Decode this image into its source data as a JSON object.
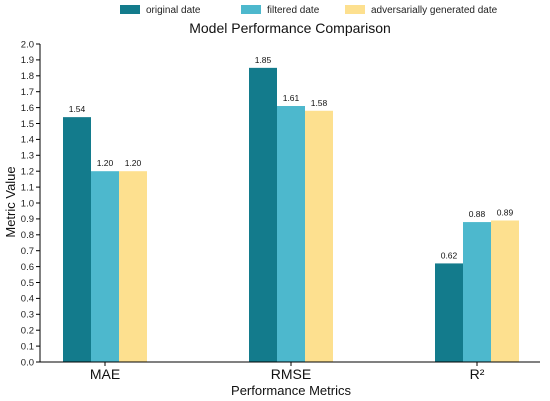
{
  "chart_data": {
    "type": "bar",
    "title": "Model Performance Comparison",
    "xlabel": "Performance Metrics",
    "ylabel": "Metric Value",
    "categories": [
      "MAE",
      "RMSE",
      "R²"
    ],
    "series": [
      {
        "name": "original date",
        "color": "#137b8c",
        "values": [
          1.54,
          1.85,
          0.62
        ],
        "labels": [
          "1.54",
          "1.85",
          "0.62"
        ]
      },
      {
        "name": "filtered date",
        "color": "#4db8cd",
        "values": [
          1.2,
          1.61,
          0.88
        ],
        "labels": [
          "1.20",
          "1.61",
          "0.88"
        ]
      },
      {
        "name": "adversarially generated date",
        "color": "#fde08f",
        "values": [
          1.2,
          1.58,
          0.89
        ],
        "labels": [
          "1.20",
          "1.58",
          "0.89"
        ]
      }
    ],
    "ylim": [
      0,
      2.0
    ],
    "yticks": [
      "0.0",
      "0.1",
      "0.2",
      "0.3",
      "0.4",
      "0.5",
      "0.6",
      "0.7",
      "0.8",
      "0.9",
      "1.0",
      "1.1",
      "1.2",
      "1.3",
      "1.4",
      "1.5",
      "1.6",
      "1.7",
      "1.8",
      "1.9",
      "2.0"
    ],
    "grid": false,
    "legend_position": "top-center"
  }
}
